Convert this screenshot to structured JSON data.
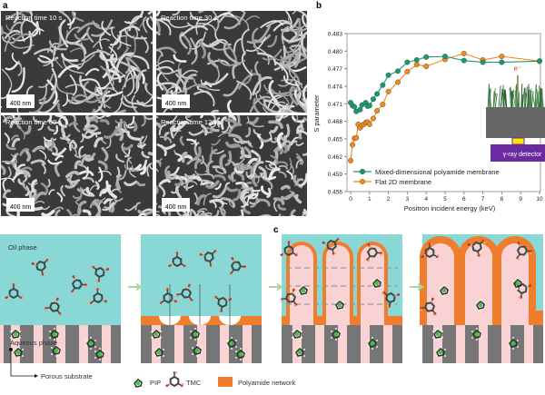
{
  "panels": {
    "a": "a",
    "b": "b",
    "c": "c"
  },
  "sem_images": [
    {
      "caption": "Reaction time 10 s",
      "scale_bar": "400 nm"
    },
    {
      "caption": "Reaction time 30 s",
      "scale_bar": "400 nm"
    },
    {
      "caption": "Reaction time 60 s",
      "scale_bar": "400 nm"
    },
    {
      "caption": "Reaction time 120 s",
      "scale_bar": "400 nm"
    }
  ],
  "inset": {
    "electron": "e⁻",
    "detector": "γ-ray detector"
  },
  "diagram": {
    "oil_phase": "Oil phase",
    "aqueous_phase": "Aqueous phase",
    "porous_substrate": "Porous substrate"
  },
  "legend": {
    "pip": "PIP",
    "tmc": "TMC",
    "polyamide": "Polyamide network"
  },
  "colors": {
    "green": "#1a9a6c",
    "orange": "#f08a1c",
    "oil": "#8ad8d6",
    "pink": "#f9d3d3",
    "gray": "#767676",
    "polyamide": "#ee7d2e",
    "detector": "#6a2aa0"
  },
  "chart_data": {
    "type": "line",
    "title": "",
    "xlabel": "Positron incident energy (keV)",
    "ylabel": "S parameter",
    "xlim": [
      0,
      10
    ],
    "ylim": [
      0.456,
      0.483
    ],
    "xticks": [
      "0",
      "1",
      "2",
      "3",
      "4",
      "5",
      "6",
      "7",
      "8",
      "9",
      "10"
    ],
    "yticks": [
      "0.456",
      "0.459",
      "0.462",
      "0.465",
      "0.468",
      "0.471",
      "0.474",
      "0.477",
      "0.480",
      "0.483"
    ],
    "legend_position": "bottom-left",
    "series": [
      {
        "name": "Mixed-dimensional polyamide membrane",
        "color": "#1a9a6c",
        "x": [
          0,
          0.1,
          0.2,
          0.3,
          0.5,
          0.6,
          0.8,
          0.9,
          1,
          1.2,
          1.4,
          1.7,
          2,
          2.5,
          3,
          3.5,
          4,
          5,
          6,
          7,
          8,
          10
        ],
        "y": [
          0.4712,
          0.4707,
          0.4705,
          0.4697,
          0.47,
          0.4708,
          0.4712,
          0.4706,
          0.4707,
          0.4718,
          0.4727,
          0.4742,
          0.4759,
          0.4766,
          0.4781,
          0.4785,
          0.479,
          0.4791,
          0.4784,
          0.4781,
          0.4781,
          0.4783
        ]
      },
      {
        "name": "Flat 2D membrane",
        "color": "#f08a1c",
        "x": [
          0,
          0.1,
          0.2,
          0.3,
          0.4,
          0.5,
          0.6,
          0.7,
          0.8,
          0.9,
          1,
          1.2,
          1.4,
          1.7,
          2,
          2.5,
          3,
          3.5,
          4,
          5,
          6,
          7,
          8,
          10
        ],
        "y": [
          0.4613,
          0.464,
          0.4651,
          0.4652,
          0.4675,
          0.4669,
          0.4673,
          0.4675,
          0.4678,
          0.4679,
          0.4675,
          0.4685,
          0.4698,
          0.4709,
          0.4731,
          0.4747,
          0.4765,
          0.4777,
          0.4774,
          0.4786,
          0.4796,
          0.4785,
          0.4791,
          0.4783
        ]
      }
    ]
  }
}
